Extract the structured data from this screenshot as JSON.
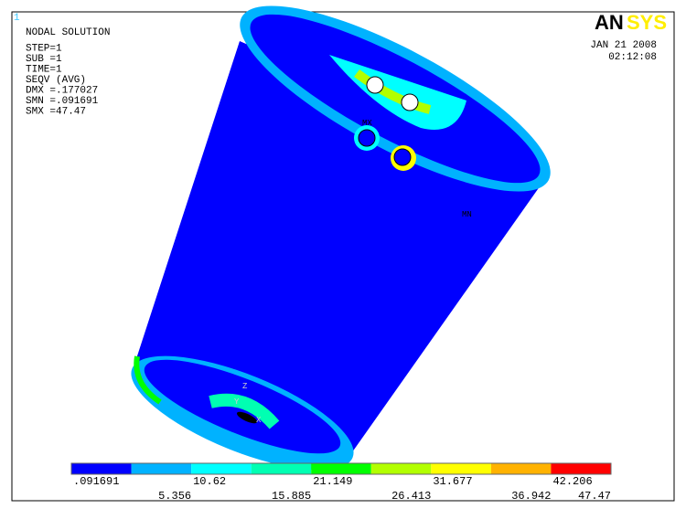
{
  "window_number": "1",
  "info": [
    "NODAL SOLUTION",
    "STEP=1",
    "SUB =1",
    "TIME=1",
    "SEQV     (AVG)",
    "DMX =.177027",
    "SMN =.091691",
    "SMX =47.47"
  ],
  "logo_parts": [
    "AN",
    "SYS"
  ],
  "date": "JAN 21 2008",
  "time": "02:12:08",
  "model_labels": {
    "mx": "MX",
    "mn": "MN",
    "z": "Z",
    "y": "Y",
    "x": "X"
  },
  "legend": {
    "colors": [
      "#0000ff",
      "#00b2ff",
      "#00ffff",
      "#00ffb2",
      "#00ff00",
      "#b2ff00",
      "#ffff00",
      "#ffb200",
      "#ff0000"
    ],
    "labels": [
      ".091691",
      "5.356",
      "10.62",
      "15.885",
      "21.149",
      "26.413",
      "31.677",
      "36.942",
      "42.206",
      "47.47"
    ]
  }
}
